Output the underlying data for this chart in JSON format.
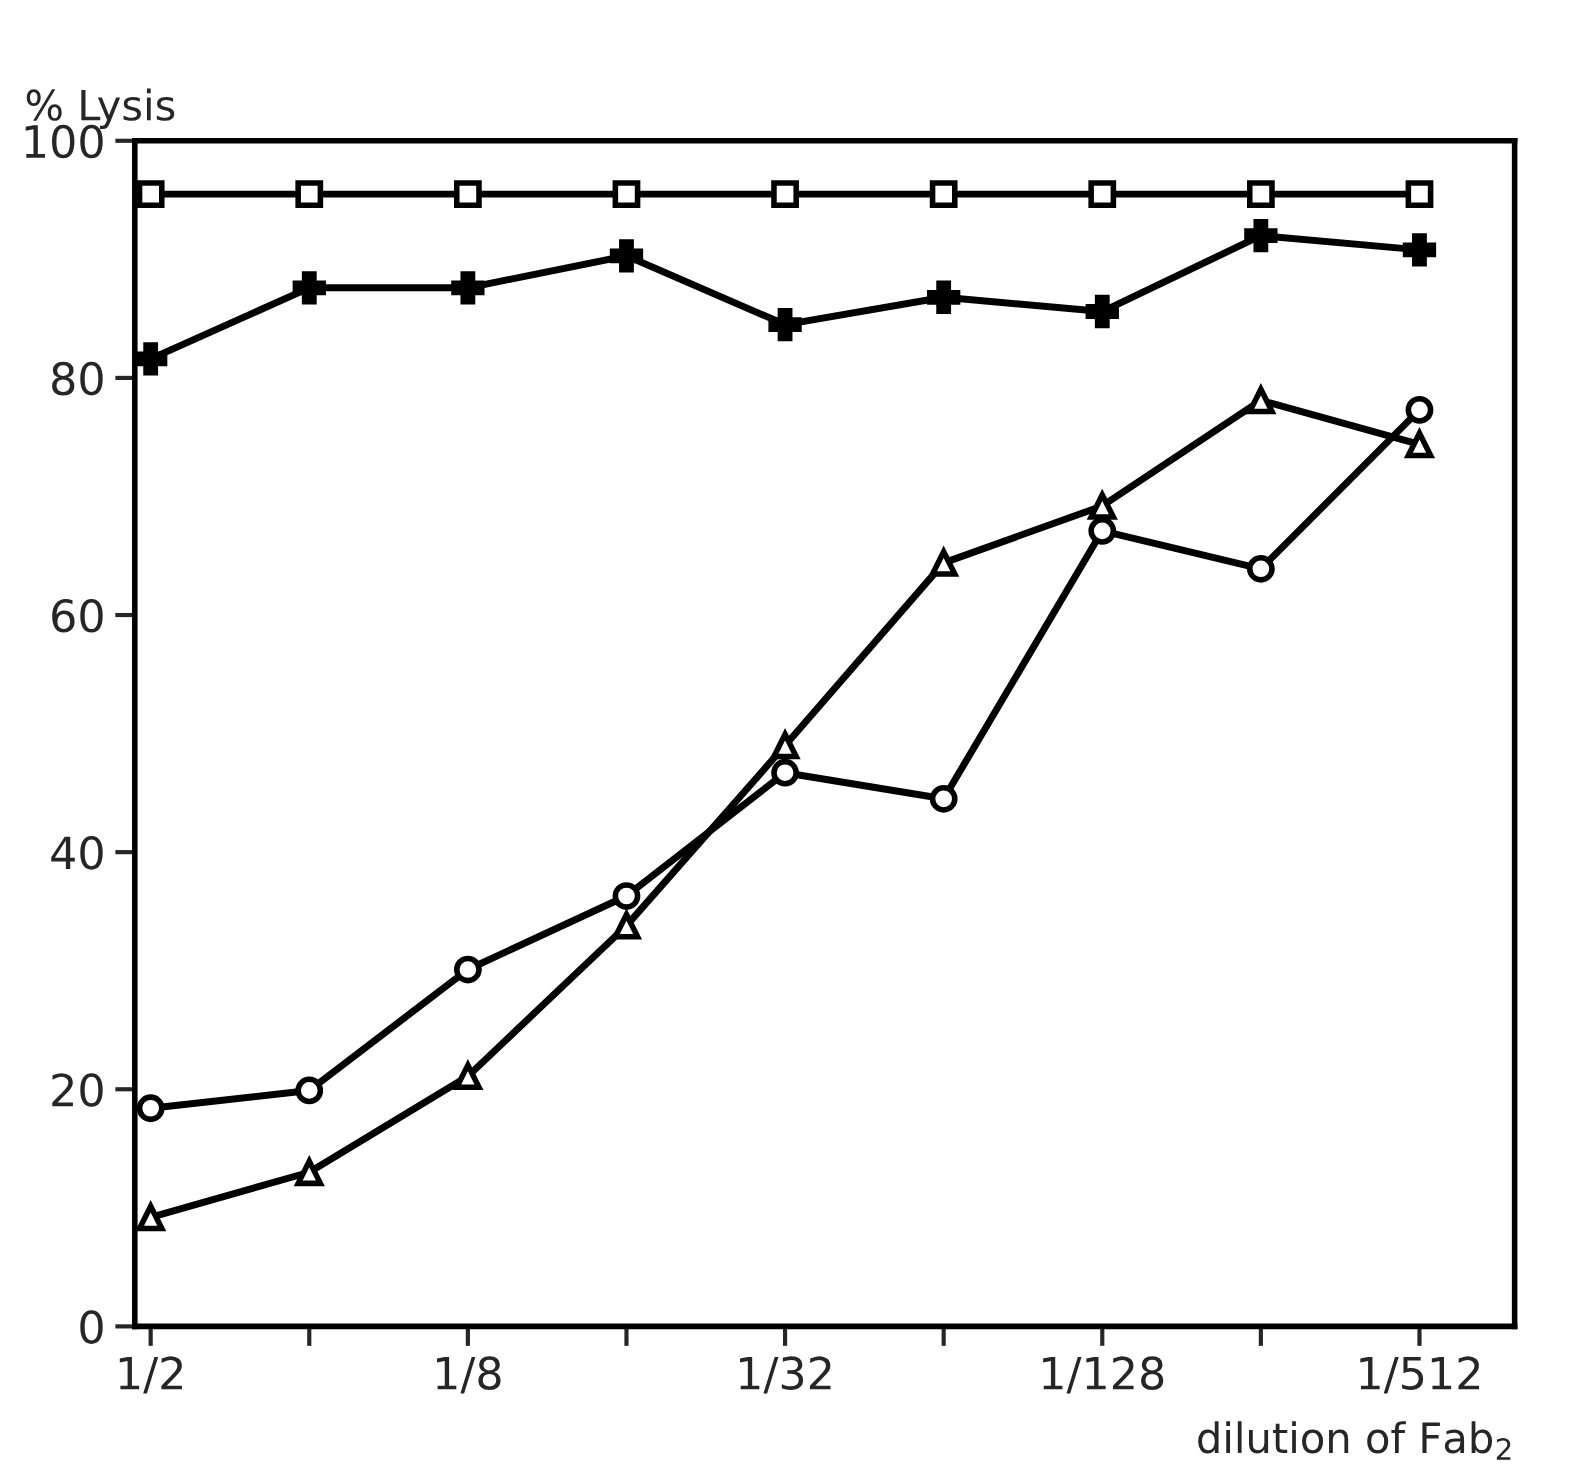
{
  "chart_data": {
    "type": "line",
    "ylabel": "% Lysis",
    "xlabel": "dilution of Fab$_{2}$",
    "categories": [
      "1/2",
      null,
      "1/8",
      null,
      "1/32",
      null,
      "1/128",
      null,
      "1/512"
    ],
    "series": [
      {
        "color": "#000000",
        "marker": "square",
        "values": [
          95.5,
          95.5,
          95.5,
          95.5,
          95.5,
          95.5,
          95.5,
          95.5,
          95.5
        ]
      },
      {
        "color": "#000000",
        "marker": "cross",
        "values": [
          81.6,
          87.6,
          87.6,
          90.3,
          84.5,
          86.8,
          85.6,
          92,
          90.8
        ]
      },
      {
        "color": "#000000",
        "marker": "triangle",
        "values": [
          9.2,
          13,
          21.1,
          33.8,
          49,
          64.4,
          69.2,
          78.1,
          74.4
        ]
      },
      {
        "color": "#000000",
        "marker": "circle",
        "values": [
          18.4,
          19.9,
          30.1,
          36.3,
          46.7,
          44.5,
          67.1,
          63.9,
          77.3
        ]
      }
    ],
    "ylim": [
      0,
      100
    ],
    "yticks": [
      0,
      20,
      40,
      60,
      80,
      100
    ],
    "grid": false,
    "legend": false,
    "line_style": "solid"
  }
}
